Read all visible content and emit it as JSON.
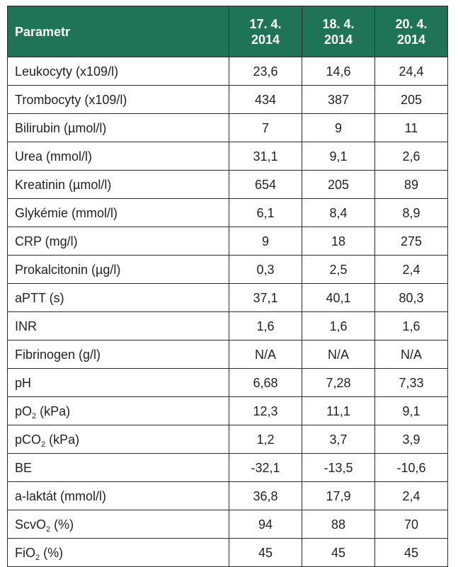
{
  "table": {
    "header": {
      "parameter": "Parametr",
      "dates": [
        {
          "line1": "17. 4.",
          "line2": "2014"
        },
        {
          "line1": "18. 4.",
          "line2": "2014"
        },
        {
          "line1": "20. 4.",
          "line2": "2014"
        }
      ]
    },
    "rows": [
      {
        "label": "Leukocyty (x109/l)",
        "values": [
          "23,6",
          "14,6",
          "24,4"
        ]
      },
      {
        "label": "Trombocyty (x109/l)",
        "values": [
          "434",
          "387",
          "205"
        ]
      },
      {
        "label": "Bilirubin (µmol/l)",
        "values": [
          "7",
          "9",
          "11"
        ]
      },
      {
        "label": "Urea (mmol/l)",
        "values": [
          "31,1",
          "9,1",
          "2,6"
        ]
      },
      {
        "label": "Kreatinin (µmol/l)",
        "values": [
          "654",
          "205",
          "89"
        ]
      },
      {
        "label": "Glykémie (mmol/l)",
        "values": [
          "6,1",
          "8,4",
          "8,9"
        ]
      },
      {
        "label": "CRP (mg/l)",
        "values": [
          "9",
          "18",
          "275"
        ]
      },
      {
        "label": "Prokalcitonin (µg/l)",
        "values": [
          "0,3",
          "2,5",
          "2,4"
        ]
      },
      {
        "label": "aPTT (s)",
        "values": [
          "37,1",
          "40,1",
          "80,3"
        ]
      },
      {
        "label": "INR",
        "values": [
          "1,6",
          "1,6",
          "1,6"
        ]
      },
      {
        "label": "Fibrinogen (g/l)",
        "values": [
          "N/A",
          "N/A",
          "N/A"
        ]
      },
      {
        "label": "pH",
        "values": [
          "6,68",
          "7,28",
          "7,33"
        ]
      },
      {
        "label_pre": "pO",
        "label_sub": "2",
        "label_post": " (kPa)",
        "values": [
          "12,3",
          "11,1",
          "9,1"
        ]
      },
      {
        "label_pre": "pCO",
        "label_sub": "2",
        "label_post": " (kPa)",
        "values": [
          "1,2",
          "3,7",
          "3,9"
        ]
      },
      {
        "label": "BE",
        "values": [
          "-32,1",
          "-13,5",
          "-10,6"
        ]
      },
      {
        "label": "a-laktát (mmol/l)",
        "values": [
          "36,8",
          "17,9",
          "2,4"
        ]
      },
      {
        "label_pre": "ScvO",
        "label_sub": "2",
        "label_post": " (%)",
        "values": [
          "94",
          "88",
          "70"
        ]
      },
      {
        "label_pre": "FiO",
        "label_sub": "2",
        "label_post": " (%)",
        "values": [
          "45",
          "45",
          "45"
        ]
      }
    ]
  }
}
